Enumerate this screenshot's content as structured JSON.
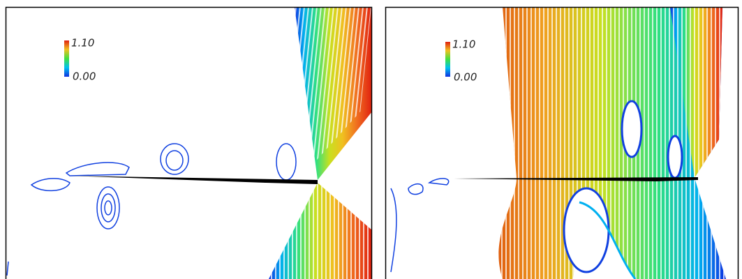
{
  "panels": [
    {
      "colorbar": {
        "max_label": "1.10",
        "min_label": "0.00"
      }
    },
    {
      "colorbar": {
        "max_label": "1.10",
        "min_label": "0.00"
      }
    }
  ]
}
